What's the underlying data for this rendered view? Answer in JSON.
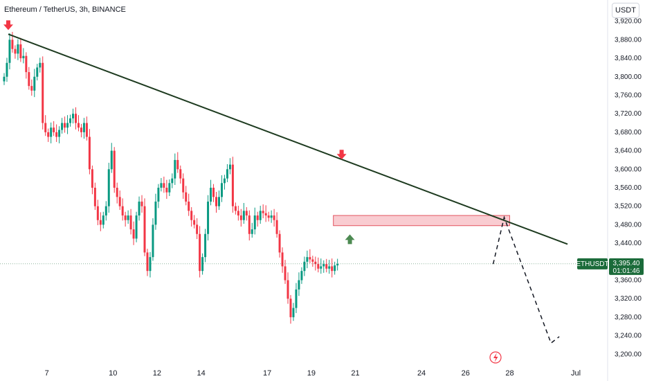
{
  "header": {
    "symbol_title": "Ethereum / TetherUS, 3h, BINANCE",
    "currency_button": "USDT"
  },
  "colors": {
    "up": "#089981",
    "down": "#f23645",
    "trendline": "#1d3a1f",
    "zone_fill": "#f4a3ab",
    "zone_stroke": "#e2535f",
    "marker_down": "#f23645",
    "marker_up": "#4d8a52",
    "price_label_bg": "#1b6b3a"
  },
  "chart_data": {
    "type": "candlestick",
    "title": "Ethereum / TetherUS, 3h, BINANCE",
    "ylim": [
      3190,
      3930
    ],
    "y_ticks": [
      3200,
      3240,
      3280,
      3320,
      3360,
      3400,
      3440,
      3480,
      3520,
      3560,
      3600,
      3640,
      3680,
      3720,
      3760,
      3800,
      3840,
      3880,
      3920
    ],
    "y_tick_labels": [
      "3,200.00",
      "3,240.00",
      "3,280.00",
      "3,320.00",
      "3,360.00",
      "3,400.00",
      "3,440.00",
      "3,480.00",
      "3,520.00",
      "3,560.00",
      "3,600.00",
      "3,640.00",
      "3,680.00",
      "3,720.00",
      "3,760.00",
      "3,800.00",
      "3,840.00",
      "3,880.00",
      "3,920.00"
    ],
    "x_ticks": [
      "7",
      "10",
      "12",
      "14",
      "17",
      "19",
      "21",
      "24",
      "26",
      "28",
      "Jul"
    ],
    "x_tick_dates": [
      "Jun 7",
      "Jun 10",
      "Jun 12",
      "Jun 14",
      "Jun 17",
      "Jun 19",
      "Jun 21",
      "Jun 24",
      "Jun 26",
      "Jun 28",
      "Jul 1"
    ],
    "x_range": [
      "Jun 5 00:00",
      "Jul 1 00:00"
    ],
    "candle_interval": "3h",
    "candles_start": "Jun 5 00:00",
    "candles_close": [
      3800,
      3830,
      3880,
      3860,
      3850,
      3870,
      3840,
      3845,
      3810,
      3780,
      3770,
      3800,
      3820,
      3830,
      3700,
      3680,
      3670,
      3690,
      3680,
      3670,
      3685,
      3700,
      3690,
      3700,
      3710,
      3720,
      3700,
      3690,
      3680,
      3700,
      3670,
      3600,
      3560,
      3520,
      3490,
      3480,
      3500,
      3520,
      3600,
      3640,
      3560,
      3540,
      3520,
      3500,
      3490,
      3500,
      3470,
      3450,
      3500,
      3530,
      3520,
      3420,
      3380,
      3410,
      3480,
      3530,
      3560,
      3570,
      3560,
      3550,
      3570,
      3580,
      3620,
      3600,
      3580,
      3550,
      3530,
      3510,
      3490,
      3480,
      3460,
      3380,
      3410,
      3460,
      3530,
      3560,
      3540,
      3520,
      3540,
      3570,
      3580,
      3600,
      3610,
      3520,
      3510,
      3500,
      3490,
      3510,
      3500,
      3460,
      3470,
      3500,
      3490,
      3510,
      3505,
      3500,
      3495,
      3500,
      3490,
      3460,
      3420,
      3390,
      3360,
      3320,
      3280,
      3300,
      3340,
      3360,
      3380,
      3400,
      3410,
      3405,
      3400,
      3395,
      3385,
      3390,
      3395,
      3385,
      3390,
      3380,
      3392,
      3395.4
    ],
    "trendline": {
      "from": {
        "x": "Jun 5 06:00",
        "y": 3892
      },
      "to": {
        "x": "Jun 30 15:00",
        "y": 3438
      }
    },
    "resistance_zone": {
      "x_from": "Jun 20 00:00",
      "x_to": "Jun 28 00:00",
      "y_low": 3478,
      "y_high": 3500
    },
    "projection_path": [
      {
        "x": "Jun 27 06:00",
        "y": 3395
      },
      {
        "x": "Jun 27 18:00",
        "y": 3496
      },
      {
        "x": "Jun 29 21:00",
        "y": 3224
      },
      {
        "x": "Jun 30 06:00",
        "y": 3238
      }
    ],
    "markers": [
      {
        "type": "arrow-down",
        "x": "Jun 5 06:00",
        "y": 3910
      },
      {
        "type": "arrow-down",
        "x": "Jun 20 09:00",
        "y": 3630
      },
      {
        "type": "arrow-up",
        "x": "Jun 20 18:00",
        "y": 3450
      }
    ],
    "last_price": {
      "symbol": "ETHUSDT",
      "value": "3,395.40",
      "countdown": "01:01:46",
      "y": 3395.4
    },
    "grid": false,
    "legend": "none"
  }
}
